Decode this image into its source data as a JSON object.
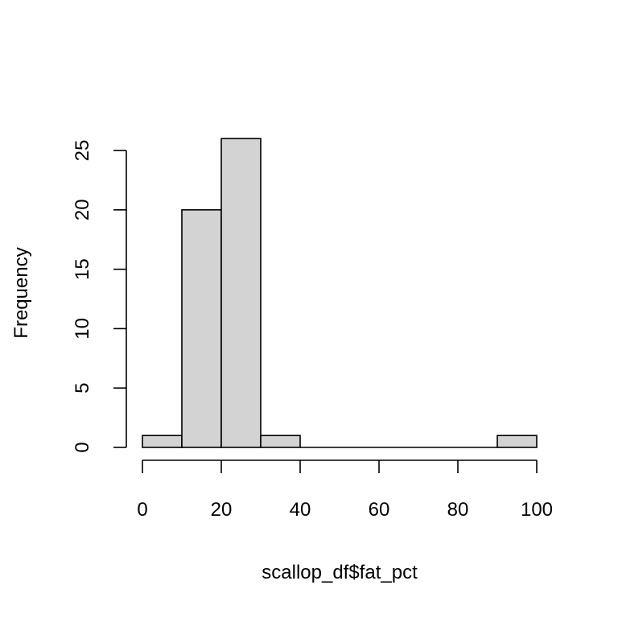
{
  "chart_data": {
    "type": "bar",
    "histogram": true,
    "title": "",
    "xlabel": "scallop_df$fat_pct",
    "ylabel": "Frequency",
    "bins": [
      {
        "start": 0,
        "end": 10,
        "count": 1
      },
      {
        "start": 10,
        "end": 20,
        "count": 20
      },
      {
        "start": 20,
        "end": 30,
        "count": 26
      },
      {
        "start": 30,
        "end": 40,
        "count": 1
      },
      {
        "start": 40,
        "end": 50,
        "count": 0
      },
      {
        "start": 50,
        "end": 60,
        "count": 0
      },
      {
        "start": 60,
        "end": 70,
        "count": 0
      },
      {
        "start": 70,
        "end": 80,
        "count": 0
      },
      {
        "start": 80,
        "end": 90,
        "count": 0
      },
      {
        "start": 90,
        "end": 100,
        "count": 1
      }
    ],
    "xlim": [
      0,
      100
    ],
    "ylim": [
      0,
      26
    ],
    "xticks": [
      0,
      20,
      40,
      60,
      80,
      100
    ],
    "yticks": [
      0,
      5,
      10,
      15,
      20,
      25
    ],
    "grid": false,
    "bar_color": "#d3d3d3",
    "border_color": "#000000"
  }
}
